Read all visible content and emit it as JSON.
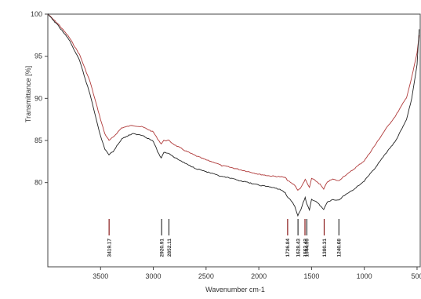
{
  "chart_data": {
    "type": "line",
    "title": "",
    "xlabel": "Wavenumber cm-1",
    "ylabel": "Transmittance [%]",
    "xlim": [
      4000,
      470
    ],
    "x_reversed": true,
    "ylim": [
      70,
      100
    ],
    "xticks": [
      3500,
      3000,
      2500,
      2000,
      1500,
      1000,
      500
    ],
    "yticks": [
      80,
      85,
      90,
      95,
      100
    ],
    "grid": false,
    "legend": "none",
    "series": [
      {
        "color": "#b03a3a",
        "x": [
          4000,
          3900,
          3800,
          3700,
          3600,
          3500,
          3460,
          3420,
          3380,
          3300,
          3200,
          3100,
          3000,
          2960,
          2925,
          2900,
          2855,
          2800,
          2700,
          2600,
          2500,
          2400,
          2350,
          2300,
          2200,
          2100,
          2000,
          1900,
          1800,
          1750,
          1730,
          1700,
          1660,
          1630,
          1600,
          1580,
          1560,
          1545,
          1520,
          1500,
          1460,
          1420,
          1385,
          1350,
          1300,
          1240,
          1200,
          1150,
          1100,
          1000,
          900,
          800,
          700,
          600,
          550,
          500,
          480
        ],
        "values": [
          100,
          98.8,
          97.3,
          95.2,
          92.0,
          87.5,
          85.8,
          85.0,
          85.4,
          86.5,
          86.8,
          86.6,
          86.0,
          85.2,
          84.6,
          85.0,
          85.0,
          84.5,
          83.8,
          83.2,
          82.7,
          82.3,
          82.0,
          81.9,
          81.6,
          81.3,
          81.0,
          80.8,
          80.7,
          80.6,
          80.3,
          80.0,
          79.7,
          79.1,
          79.4,
          79.9,
          80.4,
          80.0,
          79.4,
          80.5,
          80.2,
          79.8,
          79.2,
          80.1,
          80.4,
          80.2,
          80.7,
          81.1,
          81.6,
          82.6,
          84.4,
          86.3,
          88.0,
          90.1,
          92.5,
          95.4,
          97.5
        ]
      },
      {
        "color": "#222222",
        "x": [
          4000,
          3900,
          3800,
          3700,
          3600,
          3500,
          3460,
          3420,
          3380,
          3300,
          3200,
          3100,
          3000,
          2960,
          2925,
          2900,
          2855,
          2800,
          2700,
          2600,
          2500,
          2400,
          2350,
          2300,
          2200,
          2100,
          2000,
          1900,
          1800,
          1750,
          1730,
          1700,
          1660,
          1630,
          1600,
          1580,
          1560,
          1545,
          1520,
          1500,
          1460,
          1420,
          1385,
          1350,
          1300,
          1240,
          1200,
          1150,
          1100,
          1000,
          900,
          800,
          700,
          600,
          550,
          500,
          480
        ],
        "values": [
          100,
          98.6,
          97.0,
          94.5,
          90.5,
          85.5,
          84.0,
          83.3,
          83.7,
          85.2,
          85.8,
          85.6,
          84.9,
          83.7,
          82.9,
          83.6,
          83.5,
          83.0,
          82.3,
          81.7,
          81.3,
          80.9,
          80.7,
          80.6,
          80.3,
          80.0,
          79.7,
          79.5,
          79.2,
          78.8,
          78.3,
          78.0,
          77.2,
          76.1,
          76.8,
          77.6,
          78.2,
          77.5,
          76.8,
          78.0,
          77.8,
          77.3,
          76.8,
          77.7,
          78.0,
          77.9,
          78.4,
          78.8,
          79.2,
          80.2,
          81.7,
          83.4,
          85.0,
          87.5,
          90.0,
          94.0,
          98.2
        ]
      }
    ],
    "peaks": [
      {
        "x": 3419.17,
        "label": "3419.17",
        "color": "#8a1a1a"
      },
      {
        "x": 2920.91,
        "label": "2920.91",
        "color": "#333333"
      },
      {
        "x": 2852.11,
        "label": "2852.11",
        "color": "#333333"
      },
      {
        "x": 1726.84,
        "label": "1726.84",
        "color": "#8a1a1a"
      },
      {
        "x": 1628.43,
        "label": "1628.43",
        "color": "#333333"
      },
      {
        "x": 1562.43,
        "label": "1562.43",
        "color": "#8a1a1a"
      },
      {
        "x": 1544.55,
        "label": "1544.55",
        "color": "#333333"
      },
      {
        "x": 1380.31,
        "label": "1380.31",
        "color": "#8a1a1a"
      },
      {
        "x": 1240.68,
        "label": "1240.68",
        "color": "#333333"
      }
    ]
  }
}
